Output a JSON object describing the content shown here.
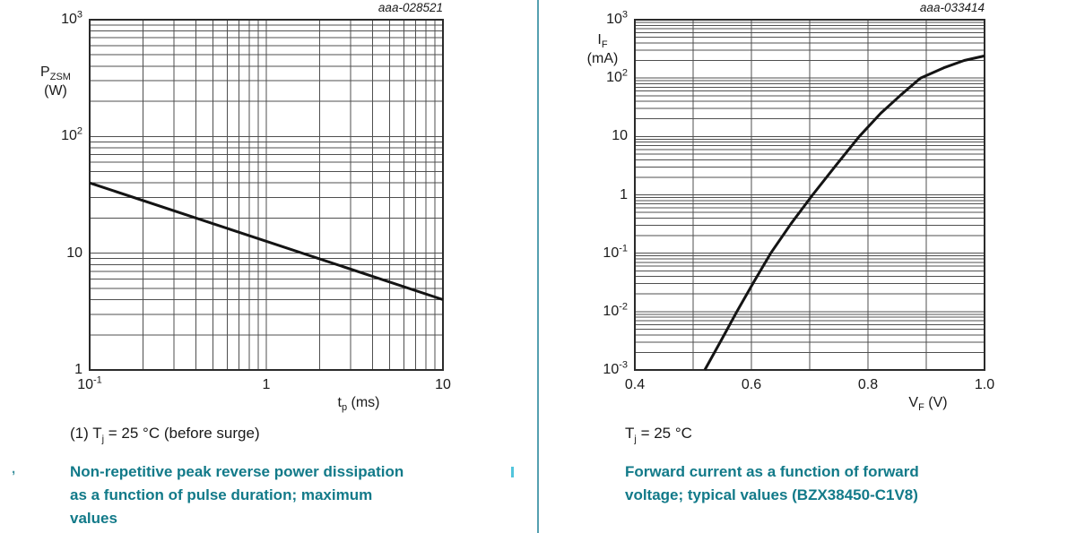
{
  "page": {
    "caption_teal": "#127a89",
    "divider_color": "#55a0b0",
    "grid_color": "#4f4f4f",
    "frame_color": "#2b2b2b",
    "curve_color": "#141414",
    "cyan_mark_color": "#52c5dc",
    "stray_mark": ","
  },
  "left_chart": {
    "plot_id": "aaa-028521",
    "ylabel": {
      "pre": "P",
      "sub": "ZSM",
      "unit": "(W)"
    },
    "xlabel": {
      "pre": "t",
      "sub": "p",
      "post": " (ms)"
    },
    "y_ticks": [
      {
        "base": "10",
        "exp": "3",
        "value": 1000
      },
      {
        "base": "10",
        "exp": "2",
        "value": 100
      },
      {
        "base": "10",
        "value": 10
      },
      {
        "base": "1",
        "value": 1
      }
    ],
    "x_ticks": [
      {
        "base": "10",
        "exp": "-1",
        "value": 0.1
      },
      {
        "base": "1",
        "value": 1
      },
      {
        "base": "10",
        "value": 10
      }
    ],
    "note": {
      "pre": "(1) T",
      "sub": "j",
      "post": " = 25 °C (before surge)"
    },
    "caption_lines": [
      "Non-repetitive peak reverse power dissipation",
      "as a function of pulse duration; maximum",
      "values"
    ]
  },
  "right_chart": {
    "plot_id": "aaa-033414",
    "ylabel": {
      "pre": "I",
      "sub": "F",
      "unit": "(mA)"
    },
    "xlabel": {
      "pre": "V",
      "sub": "F",
      "post": " (V)"
    },
    "y_ticks": [
      {
        "base": "10",
        "exp": "3",
        "value": 1000
      },
      {
        "base": "10",
        "exp": "2",
        "value": 100
      },
      {
        "base": "10",
        "value": 10
      },
      {
        "base": "1",
        "value": 1
      },
      {
        "base": "10",
        "exp": "-1",
        "value": 0.1
      },
      {
        "base": "10",
        "exp": "-2",
        "value": 0.01
      },
      {
        "base": "10",
        "exp": "-3",
        "value": 0.001
      }
    ],
    "x_ticks": [
      {
        "base": "0.4",
        "value": 0.4
      },
      {
        "base": "0.6",
        "value": 0.6
      },
      {
        "base": "0.8",
        "value": 0.8
      },
      {
        "base": "1.0",
        "value": 1.0
      }
    ],
    "note": {
      "pre": "T",
      "sub": "j",
      "post": " = 25 °C"
    },
    "caption_lines": [
      "Forward current as a function of forward",
      "voltage; typical values (BZX38450-C1V8)"
    ]
  },
  "chart_data": [
    {
      "type": "line",
      "id_label": "aaa-028521",
      "title": "Non-repetitive peak reverse power dissipation as a function of pulse duration; maximum values",
      "xlabel": "tp (ms)",
      "ylabel": "PZSM (W)",
      "xscale": "log",
      "yscale": "log",
      "xlim": [
        0.1,
        10
      ],
      "ylim": [
        1,
        1000
      ],
      "grid": "full log-log grid with minor decade lines",
      "legend": "none",
      "annotation": "(1) Tj = 25 °C (before surge)",
      "series": [
        {
          "name": "PZSM maximum, Tj = 25 °C (before surge)",
          "points": [
            [
              0.1,
              40
            ],
            [
              10,
              4
            ]
          ]
        }
      ]
    },
    {
      "type": "line",
      "id_label": "aaa-033414",
      "title": "Forward current as a function of forward voltage; typical values (BZX38450-C1V8)",
      "xlabel": "VF (V)",
      "ylabel": "IF (mA)",
      "xscale": "linear",
      "yscale": "log",
      "xlim": [
        0.4,
        1.0
      ],
      "ylim": [
        0.001,
        1000
      ],
      "grid": "linear x every 0.1 V, log y with minor decade lines",
      "legend": "none",
      "annotation": "Tj = 25 °C",
      "series": [
        {
          "name": "IF typical, BZX38450-C1V8, Tj = 25 °C",
          "points": [
            [
              0.52,
              0.001
            ],
            [
              0.548,
              0.0032
            ],
            [
              0.575,
              0.01
            ],
            [
              0.604,
              0.032
            ],
            [
              0.633,
              0.1
            ],
            [
              0.668,
              0.32
            ],
            [
              0.705,
              1
            ],
            [
              0.745,
              3.2
            ],
            [
              0.785,
              10
            ],
            [
              0.822,
              25
            ],
            [
              0.855,
              50
            ],
            [
              0.89,
              100
            ],
            [
              0.93,
              150
            ],
            [
              0.965,
              200
            ],
            [
              1.0,
              240
            ]
          ]
        }
      ]
    }
  ]
}
